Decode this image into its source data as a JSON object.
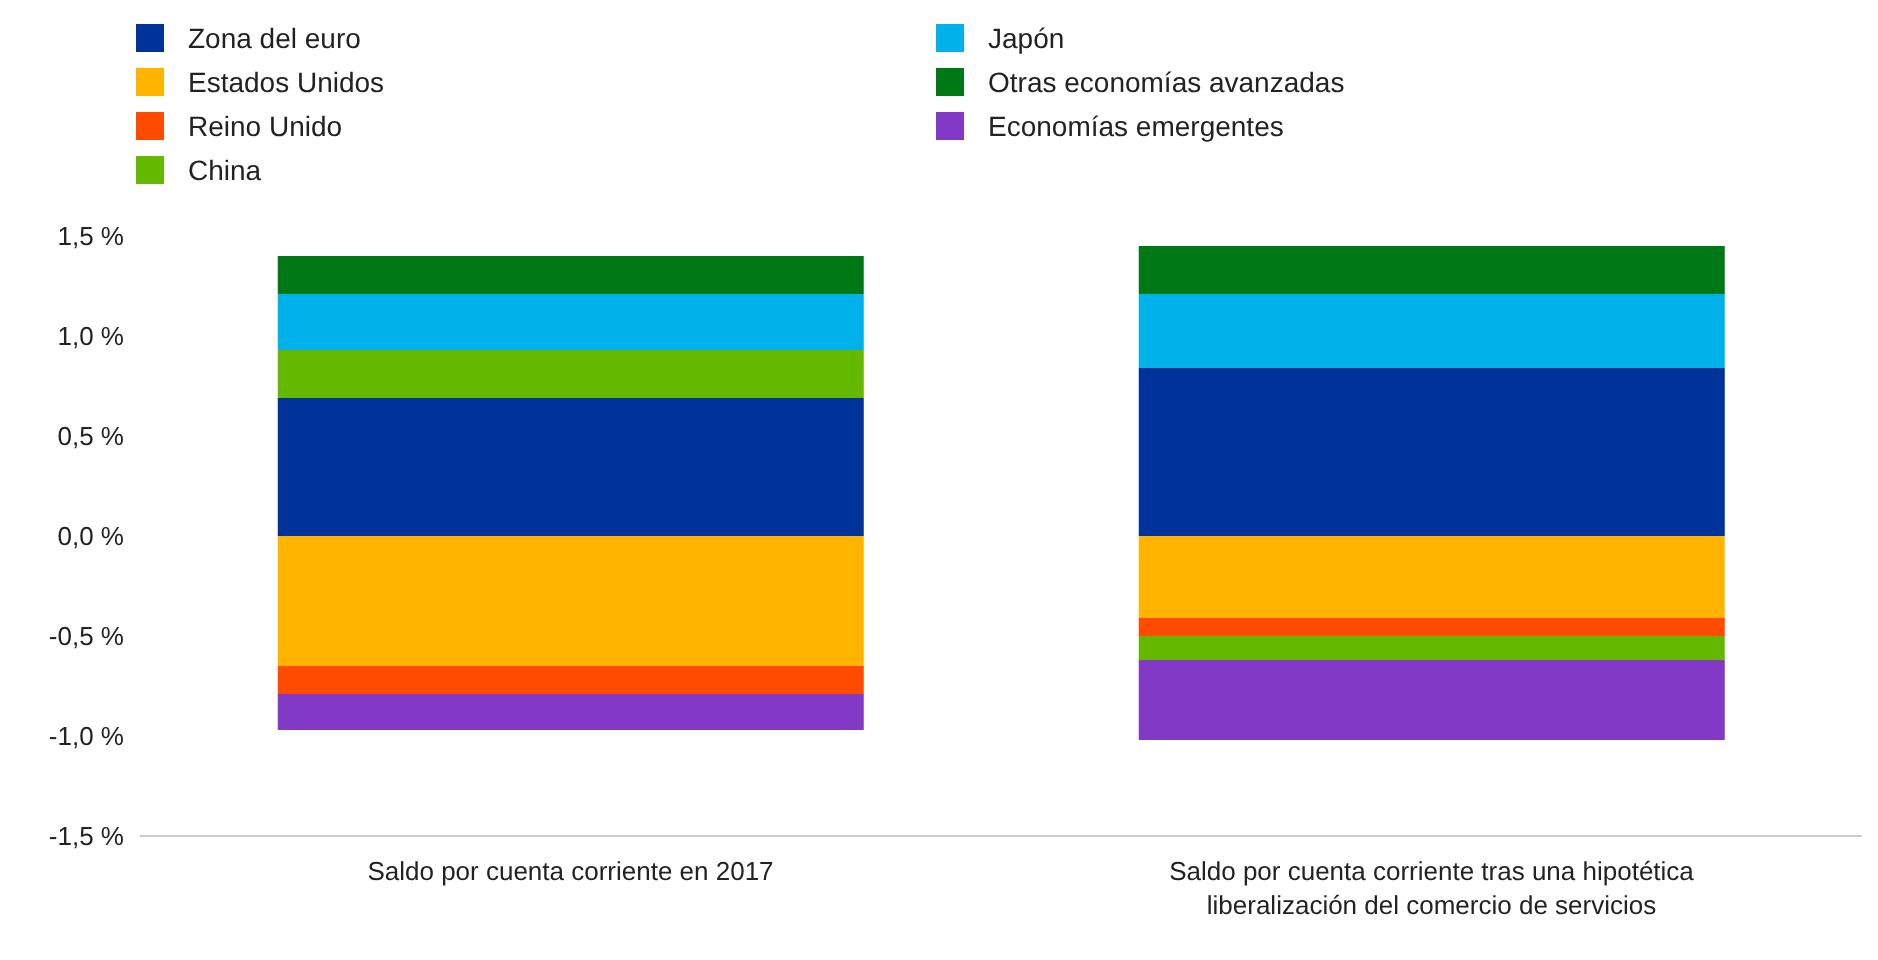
{
  "chart_data": {
    "type": "bar",
    "stacked": true,
    "categories": [
      "Saldo por cuenta corriente en 2017",
      "Saldo por cuenta corriente tras una hipotética liberalización del comercio de servicios"
    ],
    "series": [
      {
        "name": "Zona del euro",
        "color": "#003399",
        "values": [
          0.69,
          0.84
        ]
      },
      {
        "name": "Estados Unidos",
        "color": "#ffb400",
        "values": [
          -0.65,
          -0.41
        ]
      },
      {
        "name": "Reino Unido",
        "color": "#ff4b00",
        "values": [
          -0.14,
          -0.09
        ]
      },
      {
        "name": "China",
        "color": "#65b800",
        "values": [
          0.24,
          -0.12
        ]
      },
      {
        "name": "Japón",
        "color": "#00b1ea",
        "values": [
          0.28,
          0.37
        ]
      },
      {
        "name": "Otras economías avanzadas",
        "color": "#007816",
        "values": [
          0.19,
          0.24
        ]
      },
      {
        "name": "Economías emergentes",
        "color": "#8139c6",
        "values": [
          -0.18,
          -0.4
        ]
      }
    ],
    "ylim": [
      -1.5,
      1.5
    ],
    "yticks": [
      {
        "value": -1.5,
        "label": "-1,5 %"
      },
      {
        "value": -1,
        "label": "-1,0 %"
      },
      {
        "value": -0.5,
        "label": "-0,5 %"
      },
      {
        "value": 0,
        "label": "0,0 %"
      },
      {
        "value": 0.5,
        "label": "0,5 %"
      },
      {
        "value": 1,
        "label": "1,0 %"
      },
      {
        "value": 1.5,
        "label": "1,5 %"
      }
    ],
    "legend": "top left"
  }
}
